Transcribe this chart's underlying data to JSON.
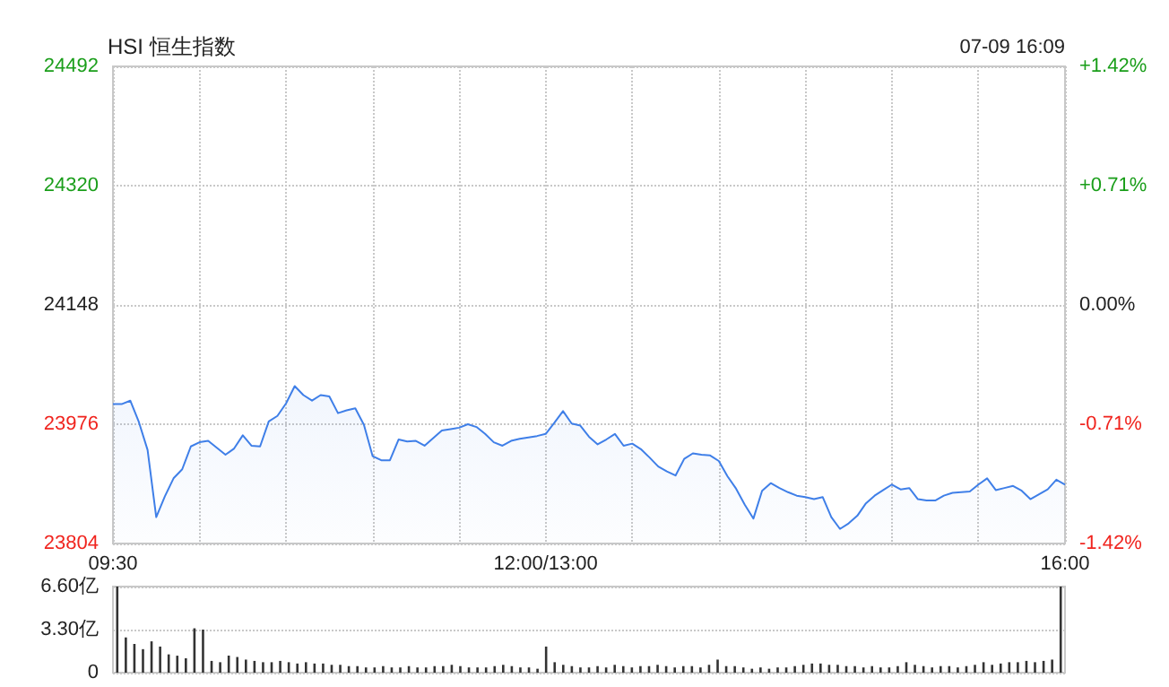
{
  "chart_data": [
    {
      "type": "area",
      "title": "HSI 恒生指数",
      "annotations": [
        "07-09 16:09"
      ],
      "color": "#3f7fe8",
      "marker": "none",
      "grid": true,
      "categories": [
        "09:30",
        null,
        null,
        null,
        null,
        null,
        null,
        null,
        null,
        null,
        null,
        null,
        null,
        null,
        null,
        null,
        null,
        null,
        null,
        null,
        null,
        null,
        null,
        null,
        null,
        null,
        null,
        null,
        null,
        null,
        null,
        null,
        null,
        null,
        null,
        null,
        null,
        null,
        null,
        null,
        null,
        null,
        null,
        null,
        null,
        null,
        null,
        null,
        null,
        null,
        "12:00/13:00",
        null,
        null,
        null,
        null,
        null,
        null,
        null,
        null,
        null,
        null,
        null,
        null,
        null,
        null,
        null,
        null,
        null,
        null,
        null,
        null,
        null,
        null,
        null,
        null,
        null,
        null,
        null,
        null,
        null,
        null,
        null,
        null,
        null,
        null,
        null,
        null,
        null,
        null,
        null,
        null,
        null,
        null,
        null,
        null,
        null,
        null,
        null,
        null,
        null,
        null,
        null,
        null,
        null,
        null,
        null,
        null,
        null,
        null,
        null,
        "16:00"
      ],
      "values": [
        24005,
        24005,
        24010,
        23979,
        23939,
        23842,
        23872,
        23898,
        23911,
        23944,
        23950,
        23952,
        23942,
        23932,
        23941,
        23960,
        23945,
        23944,
        23980,
        23988,
        24006,
        24031,
        24018,
        24010,
        24018,
        24016,
        23992,
        23996,
        23999,
        23975,
        23930,
        23924,
        23924,
        23954,
        23951,
        23952,
        23945,
        23956,
        23967,
        23969,
        23971,
        23976,
        23972,
        23962,
        23950,
        23945,
        23952,
        23955,
        23957,
        23959,
        23962,
        23978,
        23995,
        23977,
        23974,
        23958,
        23947,
        23954,
        23962,
        23945,
        23948,
        23940,
        23928,
        23915,
        23908,
        23902,
        23926,
        23934,
        23932,
        23931,
        23923,
        23901,
        23883,
        23860,
        23840,
        23880,
        23891,
        23884,
        23878,
        23873,
        23871,
        23868,
        23871,
        23842,
        23825,
        23833,
        23844,
        23862,
        23873,
        23881,
        23889,
        23882,
        23884,
        23868,
        23866,
        23866,
        23873,
        23877,
        23878,
        23879,
        23889,
        23898,
        23881,
        23884,
        23887,
        23880,
        23868,
        23875,
        23882,
        23896,
        23889
      ],
      "ylim": [
        23804,
        24492
      ],
      "yticks": [
        23804,
        23976,
        24148,
        24320,
        24492
      ],
      "y2lim": [
        -1.42,
        1.42
      ],
      "y2ticks": [
        {
          "value": -1.42,
          "label": "-1.42%"
        },
        {
          "value": -0.71,
          "label": "-0.71%"
        },
        {
          "value": 0,
          "label": "0.00%"
        },
        {
          "value": 0.71,
          "label": "+0.71%"
        },
        {
          "value": 1.42,
          "label": "+1.42%"
        }
      ]
    },
    {
      "type": "bar",
      "color": "#333333",
      "grid": "y",
      "tick_labels": "y",
      "categories": [
        null,
        null,
        null,
        null,
        null,
        null,
        null,
        null,
        null,
        null,
        null,
        null,
        null,
        null,
        null,
        null,
        null,
        null,
        null,
        null,
        null,
        null,
        null,
        null,
        null,
        null,
        null,
        null,
        null,
        null,
        null,
        null,
        null,
        null,
        null,
        null,
        null,
        null,
        null,
        null,
        null,
        null,
        null,
        null,
        null,
        null,
        null,
        null,
        null,
        null,
        null,
        null,
        null,
        null,
        null,
        null,
        null,
        null,
        null,
        null,
        null,
        null,
        null,
        null,
        null,
        null,
        null,
        null,
        null,
        null,
        null,
        null,
        null,
        null,
        null,
        null,
        null,
        null,
        null,
        null,
        null,
        null,
        null,
        null,
        null,
        null,
        null,
        null,
        null,
        null,
        null,
        null,
        null,
        null,
        null,
        null,
        null,
        null,
        null,
        null,
        null,
        null,
        null,
        null,
        null,
        null,
        null,
        null,
        null,
        null,
        null
      ],
      "values": [
        6.6,
        2.7,
        2.2,
        1.8,
        2.4,
        2.0,
        1.4,
        1.3,
        1.1,
        3.4,
        3.3,
        0.9,
        0.8,
        1.3,
        1.2,
        1.0,
        0.9,
        0.8,
        0.8,
        0.9,
        0.8,
        0.7,
        0.8,
        0.7,
        0.7,
        0.6,
        0.6,
        0.5,
        0.5,
        0.4,
        0.4,
        0.5,
        0.4,
        0.4,
        0.5,
        0.4,
        0.4,
        0.5,
        0.5,
        0.6,
        0.5,
        0.4,
        0.4,
        0.4,
        0.5,
        0.6,
        0.5,
        0.4,
        0.4,
        0.3,
        2.0,
        0.8,
        0.6,
        0.5,
        0.4,
        0.4,
        0.5,
        0.4,
        0.6,
        0.5,
        0.4,
        0.5,
        0.5,
        0.6,
        0.5,
        0.4,
        0.5,
        0.5,
        0.4,
        0.6,
        1.0,
        0.5,
        0.5,
        0.4,
        0.3,
        0.4,
        0.3,
        0.4,
        0.4,
        0.5,
        0.6,
        0.7,
        0.7,
        0.6,
        0.6,
        0.5,
        0.5,
        0.4,
        0.5,
        0.4,
        0.4,
        0.5,
        0.8,
        0.6,
        0.5,
        0.4,
        0.5,
        0.5,
        0.4,
        0.5,
        0.6,
        0.8,
        0.6,
        0.7,
        0.8,
        0.8,
        0.9,
        0.8,
        0.9,
        1.0,
        6.6
      ],
      "ylim": [
        0,
        6.6
      ],
      "yticks": [
        0,
        {
          "value": 3.3,
          "label": "3.30亿"
        },
        {
          "value": 6.6,
          "label": "6.60亿"
        }
      ]
    }
  ]
}
